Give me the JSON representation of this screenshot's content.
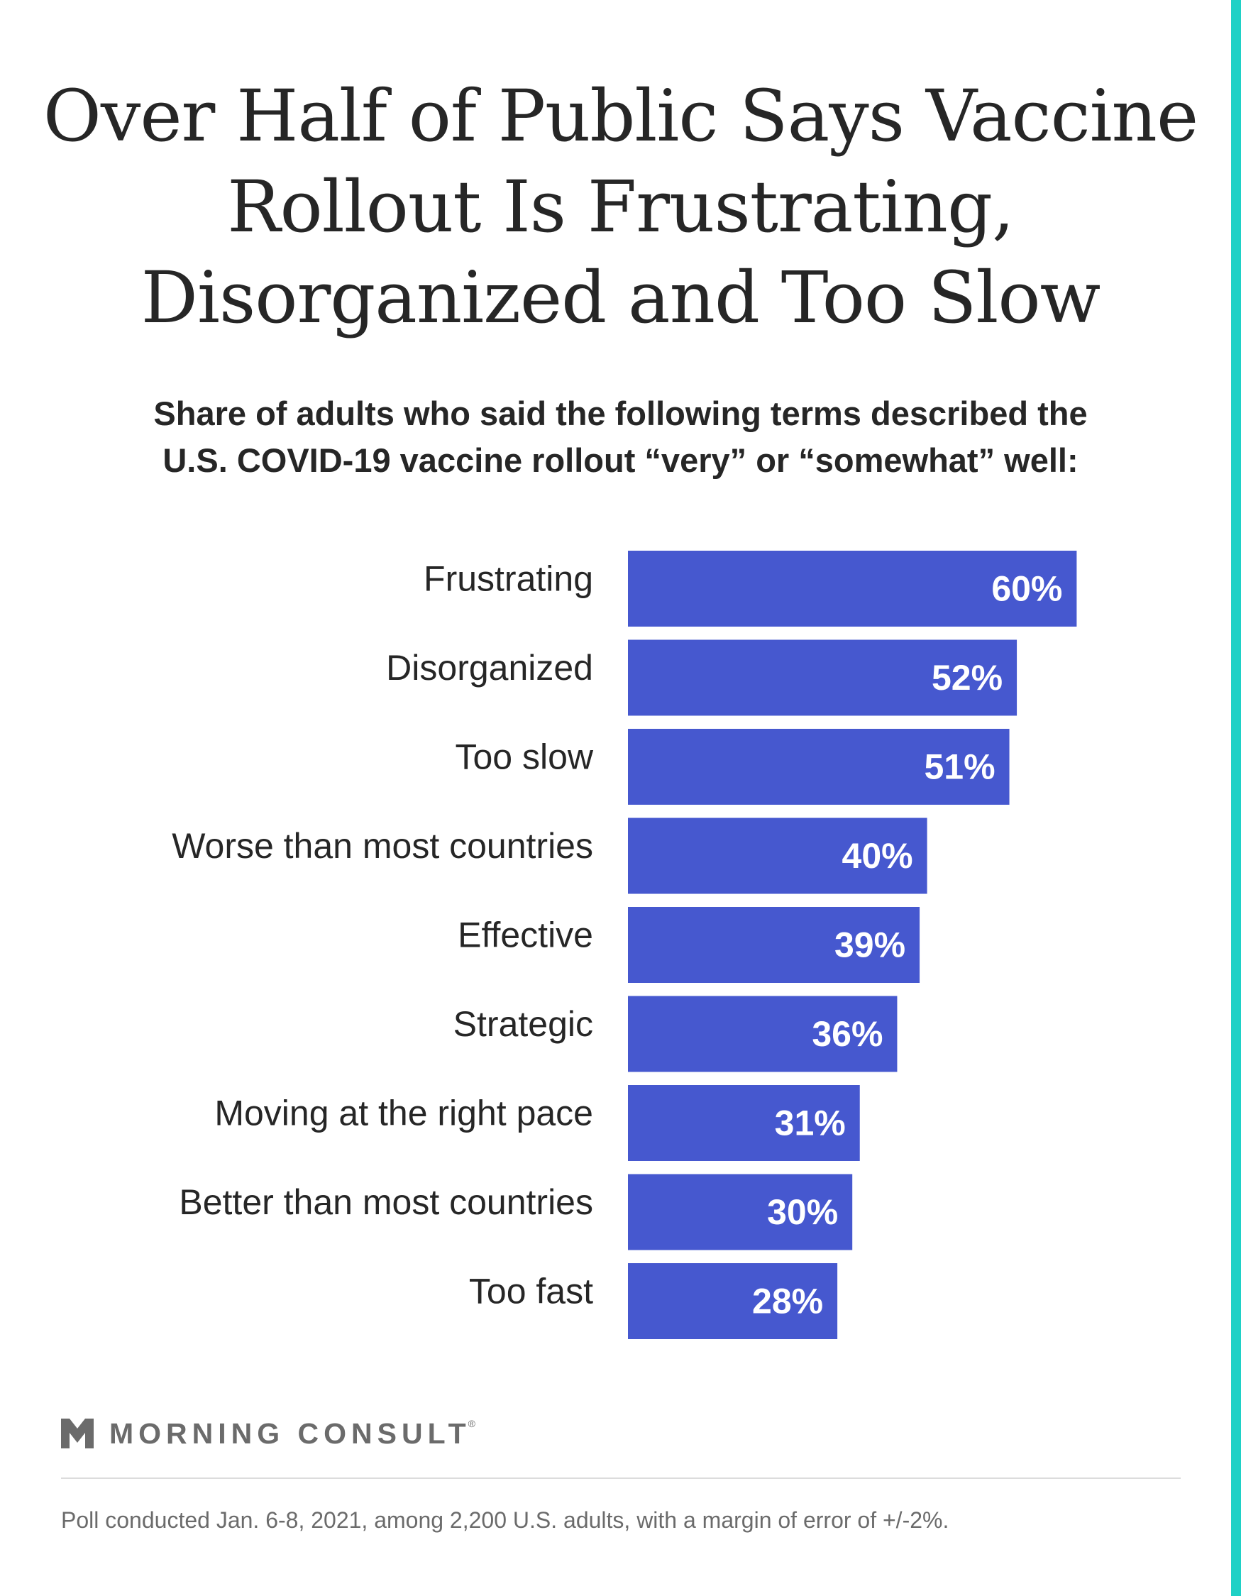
{
  "title": {
    "line1": "Over Half of Public Says Vaccine",
    "line2": "Rollout Is Frustrating,",
    "line3": "Disorganized and Too Slow"
  },
  "subtitle": {
    "line1": "Share of adults who said the following terms described the",
    "line2": "U.S. COVID-19 vaccine rollout “very” or “somewhat” well:"
  },
  "colors": {
    "bar": "#4658cf",
    "accent": "#1fd1c6",
    "text": "#262626",
    "muted": "#6b6b6b"
  },
  "chart_data": {
    "type": "bar",
    "orientation": "horizontal",
    "categories": [
      "Frustrating",
      "Disorganized",
      "Too slow",
      "Worse than most countries",
      "Effective",
      "Strategic",
      "Moving at the right pace",
      "Better than most countries",
      "Too fast"
    ],
    "values": [
      60,
      52,
      51,
      40,
      39,
      36,
      31,
      30,
      28
    ],
    "value_labels": [
      "60%",
      "52%",
      "51%",
      "40%",
      "39%",
      "36%",
      "31%",
      "30%",
      "28%"
    ],
    "unit": "%",
    "xlim": [
      0,
      100
    ],
    "grid": false,
    "legend": "none"
  },
  "branding": {
    "logo_text": "MORNING CONSULT",
    "logo_reg": "®",
    "logo_icon": "morning-consult-chevron-icon"
  },
  "footnote": "Poll conducted Jan. 6-8, 2021, among 2,200 U.S. adults, with a margin of error of +/-2%."
}
